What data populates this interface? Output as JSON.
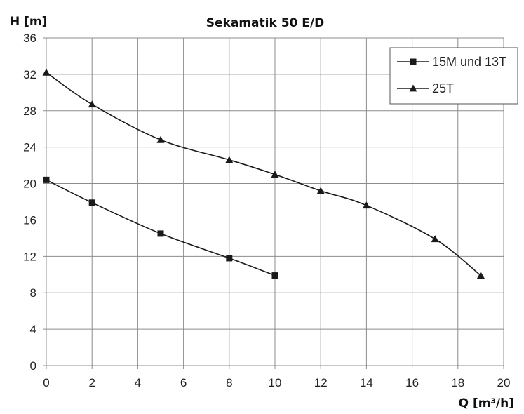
{
  "chart_data": {
    "type": "line",
    "title": "Sekamatik 50 E/D",
    "xlabel": "Q [m³/h]",
    "ylabel": "H [m]",
    "xlim": [
      0,
      20
    ],
    "ylim": [
      0,
      36
    ],
    "x_ticks": [
      "0",
      "2",
      "4",
      "6",
      "8",
      "10",
      "12",
      "14",
      "16",
      "18",
      "20"
    ],
    "y_ticks": [
      "0",
      "4",
      "8",
      "12",
      "16",
      "20",
      "24",
      "28",
      "32",
      "36"
    ],
    "grid": true,
    "legend_position": "top-right",
    "series": [
      {
        "name": "15M und 13T",
        "marker": "square",
        "color": "#1a1a1a",
        "x": [
          0,
          2,
          5,
          8,
          10
        ],
        "y": [
          20.4,
          17.9,
          14.5,
          11.8,
          9.9
        ]
      },
      {
        "name": "25T",
        "marker": "triangle",
        "color": "#1a1a1a",
        "x": [
          0,
          2,
          5,
          8,
          10,
          12,
          14,
          17,
          19
        ],
        "y": [
          32.2,
          28.7,
          24.8,
          22.6,
          21.0,
          19.2,
          17.6,
          13.9,
          9.9
        ]
      }
    ]
  }
}
